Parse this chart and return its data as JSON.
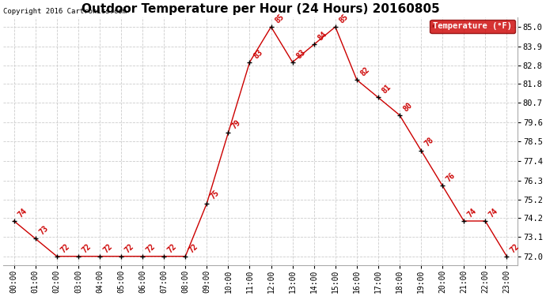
{
  "title": "Outdoor Temperature per Hour (24 Hours) 20160805",
  "copyright": "Copyright 2016 Cartronics.com",
  "legend_label": "Temperature (°F)",
  "hours": [
    0,
    1,
    2,
    3,
    4,
    5,
    6,
    7,
    8,
    9,
    10,
    11,
    12,
    13,
    14,
    15,
    16,
    17,
    18,
    19,
    20,
    21,
    22,
    23
  ],
  "temps": [
    74,
    73,
    72,
    72,
    72,
    72,
    72,
    72,
    72,
    75,
    79,
    83,
    85,
    83,
    84,
    85,
    82,
    81,
    80,
    78,
    76,
    74,
    74,
    72
  ],
  "xlabels": [
    "00:00",
    "01:00",
    "02:00",
    "03:00",
    "04:00",
    "05:00",
    "06:00",
    "07:00",
    "08:00",
    "09:00",
    "10:00",
    "11:00",
    "12:00",
    "13:00",
    "14:00",
    "15:00",
    "16:00",
    "17:00",
    "18:00",
    "19:00",
    "20:00",
    "21:00",
    "22:00",
    "23:00"
  ],
  "yticks": [
    72.0,
    73.1,
    74.2,
    75.2,
    76.3,
    77.4,
    78.5,
    79.6,
    80.7,
    81.8,
    82.8,
    83.9,
    85.0
  ],
  "ymin": 71.5,
  "ymax": 85.55,
  "line_color": "#cc0000",
  "marker_color": "#000000",
  "annotation_color": "#cc0000",
  "background_color": "#ffffff",
  "grid_color": "#cccccc",
  "title_fontsize": 11,
  "label_fontsize": 7,
  "annotation_fontsize": 7,
  "legend_bg": "#cc0000",
  "legend_fg": "#ffffff"
}
